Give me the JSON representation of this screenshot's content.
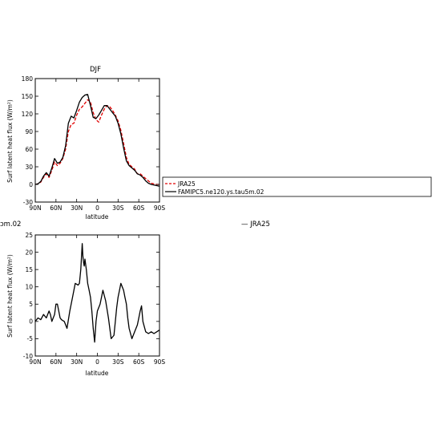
{
  "fragments": {
    "left_cut": "ɔm.02",
    "right_legend": "— JRA25"
  },
  "chart_data": [
    {
      "type": "line",
      "title": "DJF",
      "xlabel": "latitude",
      "ylabel": "Surf latent heat flux (W/m²)",
      "x_ticks": [
        {
          "lat": 90,
          "label": "90N"
        },
        {
          "lat": 60,
          "label": "60N"
        },
        {
          "lat": 30,
          "label": "30N"
        },
        {
          "lat": 0,
          "label": "0"
        },
        {
          "lat": -30,
          "label": "30S"
        },
        {
          "lat": -60,
          "label": "60S"
        },
        {
          "lat": -90,
          "label": "90S"
        }
      ],
      "xlim": [
        90,
        -90
      ],
      "ylim": [
        -30,
        180
      ],
      "y_ticks": [
        -30,
        0,
        30,
        60,
        90,
        120,
        150,
        180
      ],
      "legend": {
        "placement": "right, outside",
        "entries": [
          "JRA25",
          "FAMIPC5.ne120.ys.tau5m.02"
        ]
      },
      "series": [
        {
          "name": "JRA25",
          "color": "#e00000",
          "dash": "4,2",
          "x": [
            90,
            86,
            82,
            78,
            74,
            70,
            66,
            62,
            58,
            54,
            50,
            46,
            42,
            38,
            34,
            30,
            26,
            22,
            18,
            14,
            10,
            6,
            2,
            -2,
            -6,
            -10,
            -14,
            -18,
            -22,
            -26,
            -30,
            -34,
            -38,
            -42,
            -46,
            -50,
            -54,
            -58,
            -62,
            -66,
            -70,
            -74,
            -78,
            -82,
            -86,
            -90
          ],
          "y": [
            0,
            1,
            4,
            12,
            18,
            12,
            24,
            38,
            32,
            36,
            44,
            60,
            90,
            102,
            104,
            118,
            128,
            132,
            138,
            144,
            140,
            122,
            110,
            106,
            118,
            128,
            134,
            132,
            126,
            118,
            108,
            92,
            70,
            46,
            34,
            30,
            26,
            18,
            18,
            14,
            10,
            6,
            2,
            1,
            0,
            0
          ]
        },
        {
          "name": "FAMIPC5.ne120.ys.tau5m.02",
          "color": "#000000",
          "dash": "",
          "x": [
            90,
            86,
            82,
            78,
            74,
            70,
            66,
            62,
            58,
            54,
            50,
            46,
            42,
            38,
            34,
            30,
            26,
            22,
            18,
            14,
            10,
            6,
            2,
            -2,
            -6,
            -10,
            -14,
            -18,
            -22,
            -26,
            -30,
            -34,
            -38,
            -42,
            -46,
            -50,
            -54,
            -58,
            -62,
            -66,
            -70,
            -74,
            -78,
            -82,
            -86,
            -90
          ],
          "y": [
            0,
            1,
            5,
            14,
            20,
            14,
            28,
            44,
            36,
            38,
            46,
            66,
            104,
            116,
            113,
            126,
            140,
            148,
            152,
            153,
            134,
            114,
            112,
            118,
            126,
            134,
            134,
            128,
            122,
            116,
            104,
            86,
            62,
            40,
            32,
            28,
            24,
            18,
            16,
            12,
            6,
            2,
            0,
            -1,
            -2,
            -3
          ]
        }
      ]
    },
    {
      "type": "line",
      "title": "",
      "xlabel": "latitude",
      "ylabel": "Surf latent heat flux (W/m²)",
      "x_ticks": [
        {
          "lat": 90,
          "label": "90N"
        },
        {
          "lat": 60,
          "label": "60N"
        },
        {
          "lat": 30,
          "label": "30N"
        },
        {
          "lat": 0,
          "label": "0"
        },
        {
          "lat": -30,
          "label": "30S"
        },
        {
          "lat": -60,
          "label": "60S"
        },
        {
          "lat": -90,
          "label": "90S"
        }
      ],
      "xlim": [
        90,
        -90
      ],
      "ylim": [
        -10,
        25
      ],
      "y_ticks": [
        -10,
        -5,
        0,
        5,
        10,
        15,
        20,
        25
      ],
      "series": [
        {
          "color": "#000000",
          "dash": "",
          "x": [
            90,
            86,
            82,
            78,
            74,
            70,
            68,
            66,
            62,
            60,
            58,
            54,
            52,
            48,
            44,
            40,
            36,
            32,
            28,
            26,
            24,
            22,
            21,
            20,
            19,
            18,
            16,
            14,
            12,
            10,
            8,
            6,
            4,
            2,
            0,
            -4,
            -8,
            -12,
            -16,
            -20,
            -24,
            -26,
            -28,
            -30,
            -32,
            -34,
            -38,
            -40,
            -42,
            -44,
            -46,
            -50,
            -54,
            -58,
            -60,
            -62,
            -64,
            -66,
            -70,
            -74,
            -78,
            -82,
            -86,
            -90
          ],
          "y": [
            0,
            1,
            0.5,
            2,
            1,
            3,
            2,
            0,
            2,
            5,
            5,
            1,
            0.5,
            0,
            -2,
            3,
            7,
            11,
            10.5,
            11,
            15,
            22.5,
            19,
            17,
            16,
            18,
            15,
            11,
            9,
            7,
            3,
            -2,
            -6,
            0,
            3,
            5,
            9,
            6,
            1,
            -5,
            -4,
            0,
            4,
            7,
            9,
            11,
            9,
            7,
            5,
            1,
            -2,
            -5,
            -3,
            -1,
            1,
            3,
            4.5,
            0,
            -3,
            -3.5,
            -3,
            -3.5,
            -3,
            -2.5
          ]
        }
      ]
    }
  ]
}
